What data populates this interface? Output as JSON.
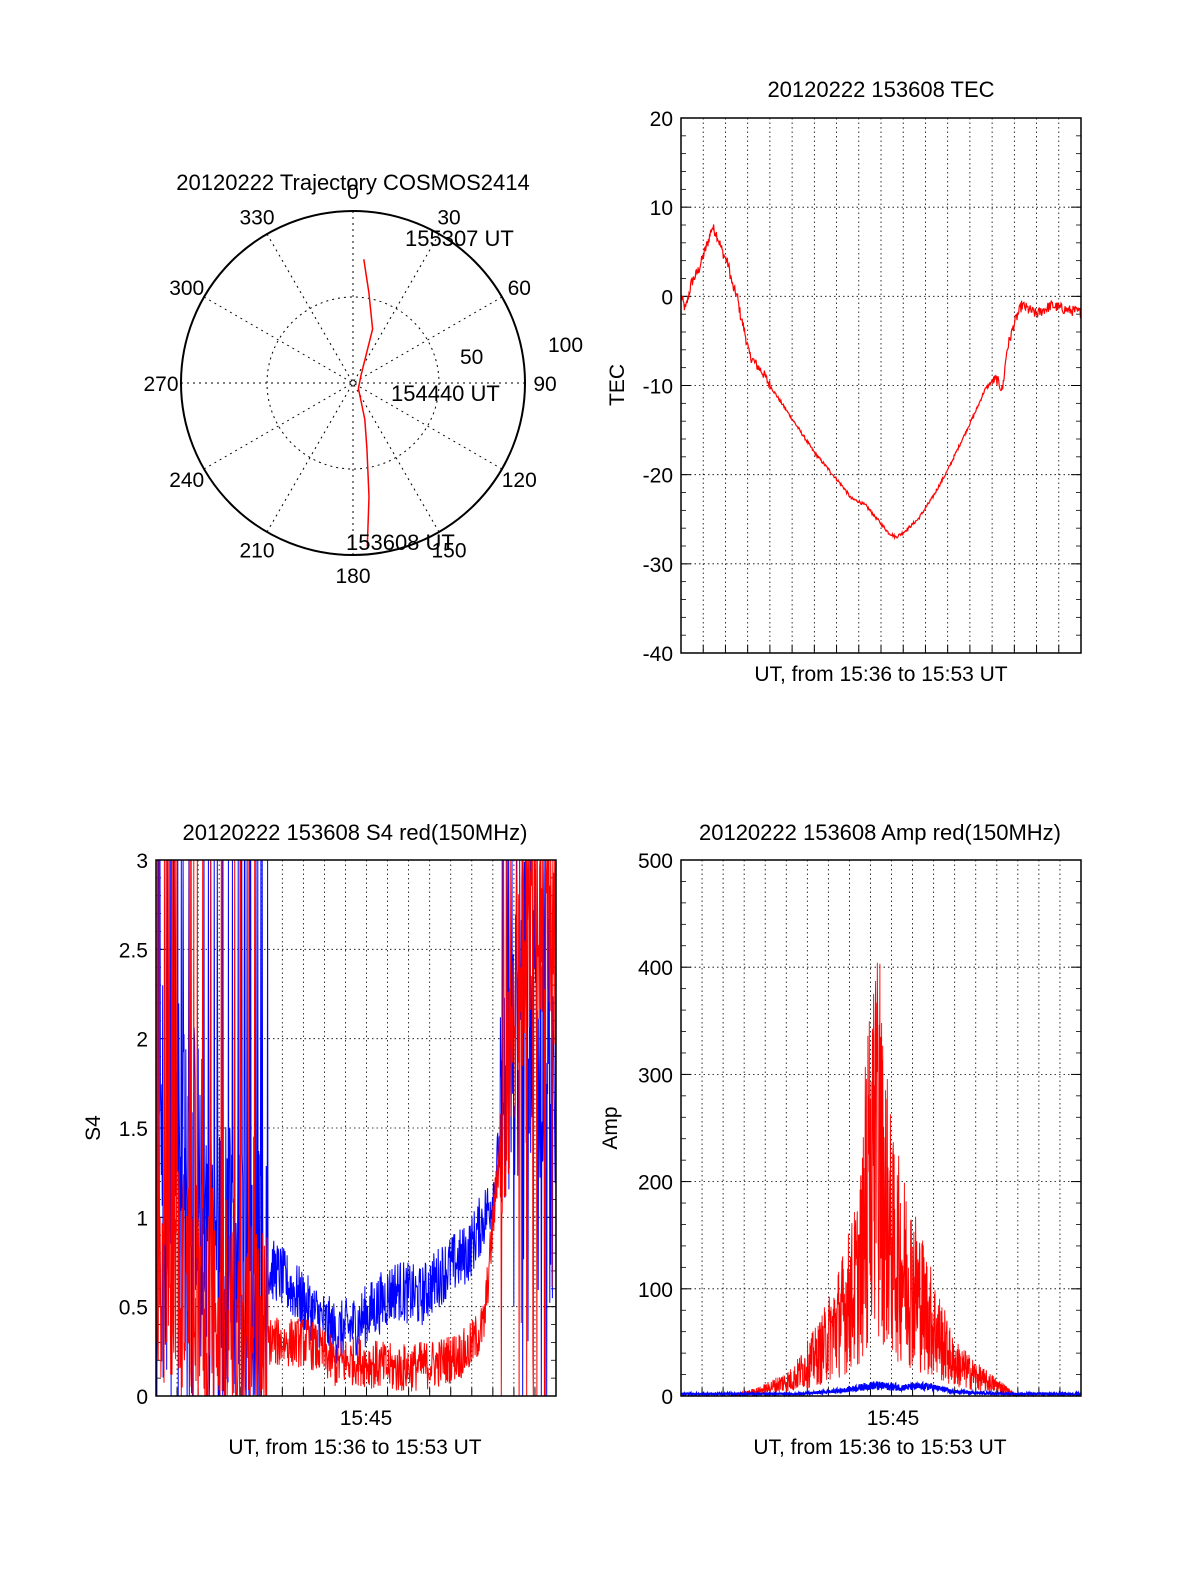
{
  "chart_data": [
    {
      "type": "polar",
      "title": "20120222 Trajectory COSMOS2414",
      "azimuth_labels": [
        "0",
        "30",
        "60",
        "90",
        "120",
        "150",
        "180",
        "210",
        "240",
        "270",
        "300",
        "330"
      ],
      "elevation_labels": [
        "50",
        "100"
      ],
      "trajectory": {
        "color": "#ff0000",
        "points_az_el": [
          [
            5,
            25
          ],
          [
            10,
            42
          ],
          [
            20,
            60
          ],
          [
            45,
            84
          ],
          [
            135,
            86
          ],
          [
            162,
            70
          ],
          [
            168,
            55
          ],
          [
            172,
            30
          ],
          [
            175,
            4
          ]
        ]
      },
      "annotations": [
        "155307 UT",
        "154440 UT",
        "153608 UT"
      ]
    },
    {
      "type": "line",
      "title": "20120222 153608 TEC",
      "ylabel": "TEC",
      "xlabel": "UT, from 15:36 to 15:53 UT",
      "ylim": [
        -40,
        20
      ],
      "yticks": [
        "20",
        "10",
        "0",
        "-10",
        "-20",
        "-30",
        "-40"
      ],
      "grid": true,
      "series": [
        {
          "color": "#ff0000",
          "points_t_min": [
            [
              0,
              0
            ],
            [
              0.3,
              -1.5
            ],
            [
              0.7,
              1.5
            ],
            [
              1.2,
              3
            ],
            [
              1.8,
              6
            ],
            [
              2.1,
              7.8
            ],
            [
              2.4,
              7
            ],
            [
              2.8,
              5
            ],
            [
              3.2,
              3.5
            ],
            [
              3.5,
              1
            ],
            [
              3.8,
              0
            ],
            [
              4,
              -2
            ],
            [
              4.3,
              -4
            ],
            [
              4.6,
              -6.5
            ],
            [
              5,
              -7.5
            ],
            [
              5.5,
              -8.5
            ],
            [
              6,
              -10
            ],
            [
              7,
              -12.5
            ],
            [
              8,
              -15
            ],
            [
              9,
              -17.5
            ],
            [
              10,
              -19.5
            ],
            [
              11,
              -21.5
            ],
            [
              11.5,
              -22.7
            ],
            [
              12,
              -23
            ],
            [
              12.5,
              -23.5
            ],
            [
              13,
              -24.5
            ],
            [
              13.5,
              -25.5
            ],
            [
              14,
              -26.5
            ],
            [
              14.5,
              -27
            ],
            [
              15,
              -26.5
            ],
            [
              16,
              -25
            ],
            [
              17,
              -22.5
            ],
            [
              18,
              -19.5
            ],
            [
              19,
              -16
            ],
            [
              20,
              -12.5
            ],
            [
              20.5,
              -10.5
            ],
            [
              21,
              -9.5
            ],
            [
              21.3,
              -9.3
            ],
            [
              21.7,
              -10.5
            ],
            [
              22,
              -6
            ],
            [
              22.5,
              -3
            ],
            [
              23,
              -1
            ],
            [
              23.5,
              -1.5
            ],
            [
              24,
              -2
            ],
            [
              25,
              -1
            ],
            [
              26,
              -1.5
            ],
            [
              27,
              -1.8
            ]
          ],
          "noise": 0.6
        }
      ]
    },
    {
      "type": "line",
      "title": "20120222 153608 S4 red(150MHz)",
      "ylabel": "S4",
      "xlabel": "UT, from 15:36 to 15:53 UT",
      "xtick_labels": [
        "15:45"
      ],
      "ylim": [
        0,
        3
      ],
      "yticks": [
        "3",
        "2.5",
        "2",
        "1.5",
        "1",
        "0.5",
        "0"
      ],
      "grid": true,
      "series": [
        {
          "color": "#0000ff",
          "points_frac_val": [
            [
              0,
              1.6
            ],
            [
              0.05,
              1.6
            ],
            [
              0.1,
              1.3
            ],
            [
              0.15,
              0.8
            ],
            [
              0.22,
              0.7
            ],
            [
              0.3,
              0.7
            ],
            [
              0.38,
              0.5
            ],
            [
              0.45,
              0.35
            ],
            [
              0.5,
              0.4
            ],
            [
              0.6,
              0.6
            ],
            [
              0.66,
              0.55
            ],
            [
              0.72,
              0.7
            ],
            [
              0.78,
              0.8
            ],
            [
              0.84,
              1.1
            ],
            [
              0.88,
              1.7
            ],
            [
              0.92,
              2.2
            ],
            [
              0.96,
              2.0
            ],
            [
              1,
              1.8
            ]
          ]
        },
        {
          "color": "#ff0000",
          "points_frac_val": [
            [
              0,
              0.6
            ],
            [
              0.05,
              0.7
            ],
            [
              0.1,
              0.6
            ],
            [
              0.15,
              0.55
            ],
            [
              0.22,
              0.35
            ],
            [
              0.3,
              0.3
            ],
            [
              0.38,
              0.3
            ],
            [
              0.45,
              0.18
            ],
            [
              0.5,
              0.2
            ],
            [
              0.6,
              0.15
            ],
            [
              0.7,
              0.18
            ],
            [
              0.78,
              0.25
            ],
            [
              0.82,
              0.4
            ],
            [
              0.84,
              0.9
            ],
            [
              0.86,
              1.4
            ],
            [
              0.9,
              2.2
            ],
            [
              0.94,
              2.8
            ],
            [
              1,
              2.5
            ]
          ]
        }
      ]
    },
    {
      "type": "line",
      "title": "20120222 153608 Amp red(150MHz)",
      "ylabel": "Amp",
      "xlabel": "UT, from 15:36 to 15:53 UT",
      "xtick_labels": [
        "15:45"
      ],
      "ylim": [
        0,
        500
      ],
      "yticks": [
        "500",
        "400",
        "300",
        "200",
        "100",
        "0"
      ],
      "grid": true,
      "series": [
        {
          "color": "#ff0000",
          "points_frac_val": [
            [
              0,
              0
            ],
            [
              0.05,
              0
            ],
            [
              0.12,
              0
            ],
            [
              0.2,
              5
            ],
            [
              0.28,
              15
            ],
            [
              0.35,
              40
            ],
            [
              0.4,
              70
            ],
            [
              0.44,
              100
            ],
            [
              0.47,
              160
            ],
            [
              0.49,
              220
            ],
            [
              0.5,
              200
            ],
            [
              0.53,
              130
            ],
            [
              0.58,
              100
            ],
            [
              0.62,
              70
            ],
            [
              0.68,
              30
            ],
            [
              0.75,
              15
            ],
            [
              0.8,
              8
            ],
            [
              0.84,
              0
            ],
            [
              0.85,
              0
            ],
            [
              1,
              0
            ]
          ]
        },
        {
          "color": "#0000ff",
          "points_frac_val": [
            [
              0,
              2
            ],
            [
              0.3,
              2
            ],
            [
              0.4,
              5
            ],
            [
              0.48,
              10
            ],
            [
              0.55,
              8
            ],
            [
              0.62,
              9
            ],
            [
              0.68,
              4
            ],
            [
              0.8,
              2
            ],
            [
              1,
              2
            ]
          ]
        }
      ]
    }
  ]
}
